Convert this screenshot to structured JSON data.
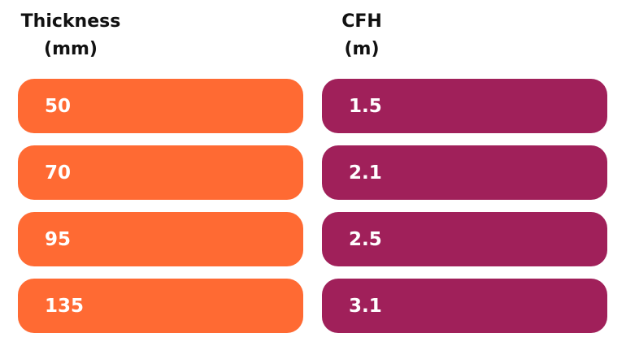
{
  "headers": {
    "thickness": {
      "line1": "Thickness",
      "line2": "(mm)"
    },
    "cfh": {
      "line1": "CFH",
      "line2": "(m)"
    }
  },
  "colors": {
    "thickness_fill": "#FF6A33",
    "cfh_fill": "#A0205A"
  },
  "rows": [
    {
      "thickness": "50",
      "cfh": "1.5"
    },
    {
      "thickness": "70",
      "cfh": "2.1"
    },
    {
      "thickness": "95",
      "cfh": "2.5"
    },
    {
      "thickness": "135",
      "cfh": "3.1"
    }
  ]
}
